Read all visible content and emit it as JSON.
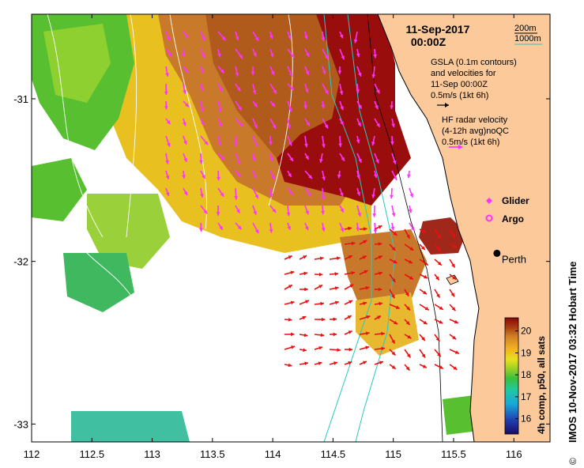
{
  "map": {
    "date_line1": "11-Sep-2017",
    "date_line2": "00:00Z",
    "contour_legend": {
      "label_200": "200m",
      "label_1000": "1000m",
      "color_200": "#000000",
      "color_1000": "#28c8c8"
    },
    "gsla_text": [
      "GSLA (0.1m contours)",
      "and velocities for",
      "11-Sep 00:00Z",
      "0.5m/s (1kt 6h)"
    ],
    "hf_text": [
      "HF radar velocity",
      "(4-12h avg)noQC",
      "0.5m/s (1kt 6h)"
    ],
    "glider_label": "Glider",
    "argo_label": "Argo",
    "perth_label": "Perth",
    "perth_lon": 115.86,
    "perth_lat": -31.95,
    "side_caption": "IMOS 10-Nov-2017 03:32 Hobart Time",
    "copyright": "©",
    "colorbar_caption": "4h comp, p50, all sats",
    "colorbar_ticks": [
      "20",
      "19",
      "18",
      "17",
      "16"
    ],
    "colorbar_values": [
      20,
      19,
      18,
      17,
      16
    ],
    "colorbar_range": [
      15.3,
      20.6
    ],
    "lon_ticks": [
      "112",
      "112.5",
      "113",
      "113.5",
      "114",
      "114.5",
      "115",
      "115.5",
      "116"
    ],
    "lon_values": [
      112,
      112.5,
      113,
      113.5,
      114,
      114.5,
      115,
      115.5,
      116
    ],
    "lat_ticks": [
      "-31",
      "-32",
      "-33"
    ],
    "lat_values": [
      -31,
      -32,
      -33
    ],
    "lon_range": [
      112,
      116.3
    ],
    "lat_range": [
      -33.11,
      -30.48
    ],
    "colors": {
      "land": "#fbc99a",
      "gsla_arrow": "#000000",
      "hf_arrow": "#e81010",
      "glider": "#ff33ff",
      "argo": "#ff33ff",
      "contour_1000": "#28c8c8",
      "contour_200": "#000000"
    }
  }
}
